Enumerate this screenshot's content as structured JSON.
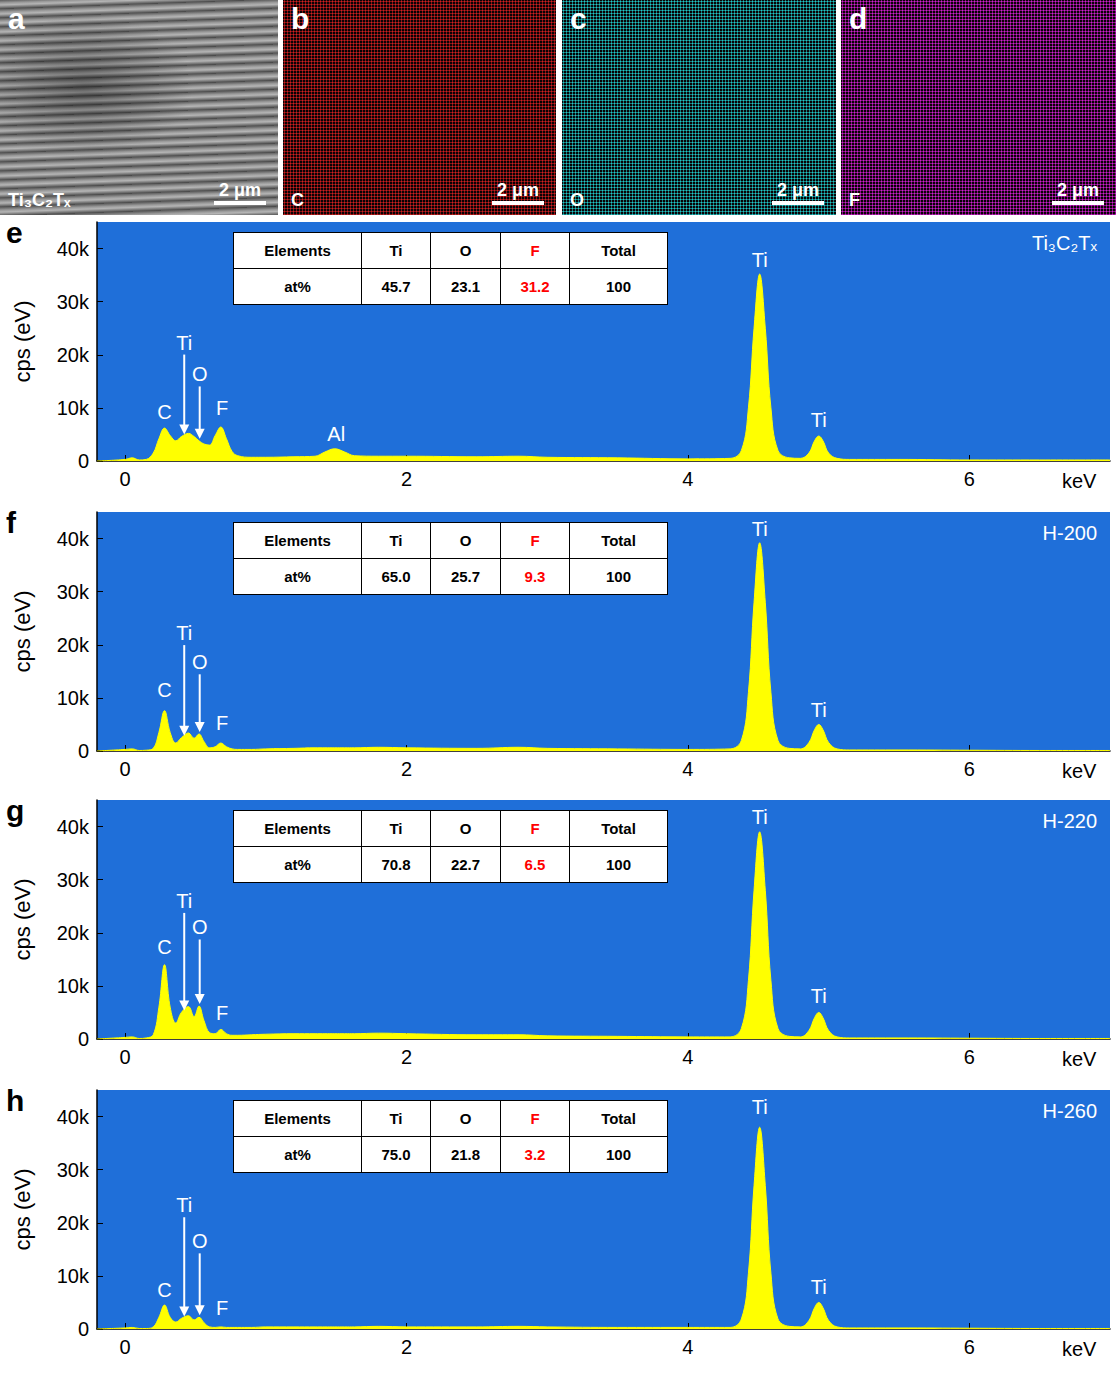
{
  "images": [
    {
      "letter": "a",
      "label": "Ti₃C₂Tₓ",
      "scale_bar": "2 μm",
      "color": "#9a9a9a"
    },
    {
      "letter": "b",
      "label": "C",
      "scale_bar": "2 μm",
      "color": "#d02020"
    },
    {
      "letter": "c",
      "label": "O",
      "scale_bar": "2 μm",
      "color": "#20c8c8"
    },
    {
      "letter": "d",
      "label": "F",
      "scale_bar": "2 μm",
      "color": "#d020d0"
    }
  ],
  "chart_data": [
    {
      "type": "area",
      "letter": "e",
      "title": "Ti₃C₂Tₓ",
      "xlabel": "keV",
      "ylabel": "cps (eV)",
      "color": "#ffff00",
      "grid": false,
      "xlim": [
        -0.2,
        7.0
      ],
      "xticks": [
        0,
        2,
        4,
        6
      ],
      "ylim": [
        0,
        45000
      ],
      "yticks": [
        0,
        {
          "value": 10000,
          "label": "10k"
        },
        {
          "value": 20000,
          "label": "20k"
        },
        {
          "value": 30000,
          "label": "30k"
        },
        {
          "value": 40000,
          "label": "40k"
        }
      ],
      "x": [
        -0.2,
        0,
        0.05,
        0.1,
        0.15,
        0.2,
        0.24,
        0.28,
        0.32,
        0.36,
        0.4,
        0.45,
        0.49,
        0.525,
        0.56,
        0.6,
        0.64,
        0.68,
        0.72,
        0.76,
        0.8,
        0.9,
        1.0,
        1.2,
        1.35,
        1.42,
        1.49,
        1.56,
        1.63,
        1.8,
        2.0,
        2.5,
        2.8,
        3.0,
        3.5,
        4.0,
        4.3,
        4.38,
        4.43,
        4.47,
        4.51,
        4.55,
        4.59,
        4.64,
        4.72,
        4.8,
        4.86,
        4.9,
        4.93,
        4.96,
        5.0,
        5.06,
        5.15,
        5.5,
        6.0,
        6.5,
        7.0
      ],
      "values": [
        0,
        300,
        600,
        200,
        300,
        1500,
        4200,
        6200,
        4800,
        3800,
        4600,
        5200,
        4600,
        3800,
        3200,
        3000,
        4800,
        6400,
        4200,
        1800,
        1000,
        700,
        700,
        800,
        900,
        1700,
        2300,
        1700,
        1000,
        900,
        900,
        800,
        900,
        700,
        600,
        400,
        500,
        2000,
        10000,
        25000,
        35200,
        25000,
        10000,
        2000,
        600,
        500,
        1500,
        3800,
        4700,
        3800,
        1500,
        500,
        300,
        300,
        200,
        200,
        200
      ],
      "annotations": [
        {
          "text": "C",
          "x": 0.28,
          "y": 9300
        },
        {
          "text": "Ti",
          "x": 0.42,
          "y": 22300,
          "marker": "arrow"
        },
        {
          "text": "O",
          "x": 0.53,
          "y": 16300,
          "marker": "arrow"
        },
        {
          "text": "F",
          "x": 0.69,
          "y": 10000
        },
        {
          "text": "Al",
          "x": 1.5,
          "y": 5100
        },
        {
          "text": "Ti",
          "x": 4.51,
          "y": 37900
        },
        {
          "text": "Ti",
          "x": 4.93,
          "y": 7800
        }
      ],
      "table": {
        "header": [
          "Elements",
          "Ti",
          "O",
          "F",
          "Total"
        ],
        "rows": [
          [
            "at%",
            "45.7",
            "23.1",
            "31.2",
            "100"
          ]
        ]
      }
    },
    {
      "type": "area",
      "letter": "f",
      "title": "H-200",
      "xlabel": "keV",
      "ylabel": "cps (eV)",
      "color": "#ffff00",
      "grid": false,
      "xlim": [
        -0.2,
        7.0
      ],
      "xticks": [
        0,
        2,
        4,
        6
      ],
      "ylim": [
        0,
        45000
      ],
      "yticks": [
        0,
        {
          "value": 10000,
          "label": "10k"
        },
        {
          "value": 20000,
          "label": "20k"
        },
        {
          "value": 30000,
          "label": "30k"
        },
        {
          "value": 40000,
          "label": "40k"
        }
      ],
      "x": [
        -0.2,
        0,
        0.05,
        0.1,
        0.15,
        0.2,
        0.24,
        0.28,
        0.32,
        0.36,
        0.4,
        0.45,
        0.49,
        0.525,
        0.56,
        0.6,
        0.64,
        0.68,
        0.72,
        0.76,
        0.8,
        0.9,
        1.0,
        1.2,
        1.35,
        1.42,
        1.49,
        1.56,
        1.63,
        1.8,
        2.0,
        2.5,
        2.8,
        3.0,
        3.5,
        4.0,
        4.3,
        4.38,
        4.43,
        4.47,
        4.51,
        4.55,
        4.59,
        4.64,
        4.72,
        4.8,
        4.86,
        4.9,
        4.93,
        4.96,
        5.0,
        5.06,
        5.15,
        5.5,
        6.0,
        6.5,
        7.0
      ],
      "values": [
        0,
        300,
        400,
        100,
        150,
        500,
        3500,
        7600,
        3500,
        1500,
        2500,
        3400,
        2400,
        3200,
        1800,
        600,
        800,
        1500,
        800,
        400,
        300,
        300,
        400,
        500,
        600,
        600,
        600,
        600,
        600,
        700,
        600,
        500,
        700,
        500,
        400,
        300,
        400,
        2000,
        11000,
        28000,
        39200,
        28000,
        11000,
        2000,
        500,
        400,
        1600,
        4000,
        5000,
        4000,
        1600,
        400,
        200,
        200,
        150,
        100,
        100
      ],
      "annotations": [
        {
          "text": "C",
          "x": 0.28,
          "y": 11400
        },
        {
          "text": "Ti",
          "x": 0.42,
          "y": 22200,
          "marker": "arrow"
        },
        {
          "text": "O",
          "x": 0.53,
          "y": 16700,
          "marker": "arrow"
        },
        {
          "text": "F",
          "x": 0.69,
          "y": 5300
        },
        {
          "text": "Ti",
          "x": 4.51,
          "y": 41800
        },
        {
          "text": "Ti",
          "x": 4.93,
          "y": 7800
        }
      ],
      "table": {
        "header": [
          "Elements",
          "Ti",
          "O",
          "F",
          "Total"
        ],
        "rows": [
          [
            "at%",
            "65.0",
            "25.7",
            "9.3",
            "100"
          ]
        ]
      }
    },
    {
      "type": "area",
      "letter": "g",
      "title": "H-220",
      "xlabel": "keV",
      "ylabel": "cps (eV)",
      "color": "#ffff00",
      "grid": false,
      "xlim": [
        -0.2,
        7.0
      ],
      "xticks": [
        0,
        2,
        4,
        6
      ],
      "ylim": [
        0,
        45000
      ],
      "yticks": [
        0,
        {
          "value": 10000,
          "label": "10k"
        },
        {
          "value": 20000,
          "label": "20k"
        },
        {
          "value": 30000,
          "label": "30k"
        },
        {
          "value": 40000,
          "label": "40k"
        }
      ],
      "x": [
        -0.2,
        0,
        0.05,
        0.1,
        0.15,
        0.2,
        0.24,
        0.28,
        0.32,
        0.36,
        0.4,
        0.45,
        0.49,
        0.525,
        0.56,
        0.6,
        0.64,
        0.68,
        0.72,
        0.76,
        0.8,
        0.9,
        1.0,
        1.2,
        1.35,
        1.42,
        1.49,
        1.56,
        1.63,
        1.8,
        2.0,
        2.5,
        2.8,
        3.0,
        3.5,
        4.0,
        4.3,
        4.38,
        4.43,
        4.47,
        4.51,
        4.55,
        4.59,
        4.64,
        4.72,
        4.8,
        4.86,
        4.9,
        4.93,
        4.96,
        5.0,
        5.06,
        5.15,
        5.5,
        6.0,
        6.5,
        7.0
      ],
      "values": [
        0,
        300,
        400,
        100,
        200,
        800,
        6000,
        14000,
        6000,
        3000,
        5000,
        6100,
        4200,
        6200,
        3500,
        1200,
        1000,
        1800,
        1000,
        700,
        700,
        800,
        900,
        1000,
        1000,
        1000,
        1000,
        1000,
        1000,
        1100,
        1000,
        800,
        800,
        600,
        500,
        400,
        400,
        2000,
        11000,
        28000,
        39000,
        28000,
        11000,
        2000,
        500,
        400,
        1600,
        4000,
        5000,
        4000,
        1600,
        400,
        200,
        200,
        150,
        100,
        100
      ],
      "annotations": [
        {
          "text": "C",
          "x": 0.28,
          "y": 17400
        },
        {
          "text": "Ti",
          "x": 0.42,
          "y": 26000,
          "marker": "arrow"
        },
        {
          "text": "O",
          "x": 0.53,
          "y": 21000,
          "marker": "arrow"
        },
        {
          "text": "F",
          "x": 0.69,
          "y": 4900
        },
        {
          "text": "Ti",
          "x": 4.51,
          "y": 41800
        },
        {
          "text": "Ti",
          "x": 4.93,
          "y": 8100
        }
      ],
      "table": {
        "header": [
          "Elements",
          "Ti",
          "O",
          "F",
          "Total"
        ],
        "rows": [
          [
            "at%",
            "70.8",
            "22.7",
            "6.5",
            "100"
          ]
        ]
      }
    },
    {
      "type": "area",
      "letter": "h",
      "title": "H-260",
      "xlabel": "keV",
      "ylabel": "cps (eV)",
      "color": "#ffff00",
      "grid": false,
      "xlim": [
        -0.2,
        7.0
      ],
      "xticks": [
        0,
        2,
        4,
        6
      ],
      "ylim": [
        0,
        45000
      ],
      "yticks": [
        0,
        {
          "value": 10000,
          "label": "10k"
        },
        {
          "value": 20000,
          "label": "20k"
        },
        {
          "value": 30000,
          "label": "30k"
        },
        {
          "value": 40000,
          "label": "40k"
        }
      ],
      "x": [
        -0.2,
        0,
        0.05,
        0.1,
        0.15,
        0.2,
        0.24,
        0.28,
        0.32,
        0.36,
        0.4,
        0.45,
        0.49,
        0.525,
        0.56,
        0.6,
        0.64,
        0.68,
        0.72,
        0.76,
        0.8,
        0.9,
        1.0,
        1.2,
        1.35,
        1.42,
        1.49,
        1.56,
        1.63,
        1.8,
        2.0,
        2.5,
        2.8,
        3.0,
        3.5,
        4.0,
        4.3,
        4.38,
        4.43,
        4.47,
        4.51,
        4.55,
        4.59,
        4.64,
        4.72,
        4.8,
        4.86,
        4.9,
        4.93,
        4.96,
        5.0,
        5.06,
        5.15,
        5.5,
        6.0,
        6.5,
        7.0
      ],
      "values": [
        0,
        200,
        300,
        100,
        100,
        400,
        2200,
        4500,
        2200,
        1300,
        2000,
        2500,
        1700,
        2200,
        1200,
        400,
        300,
        400,
        300,
        300,
        300,
        300,
        400,
        400,
        400,
        400,
        400,
        400,
        400,
        500,
        400,
        400,
        500,
        400,
        300,
        300,
        300,
        1900,
        10500,
        27000,
        38000,
        27000,
        10500,
        1900,
        500,
        400,
        1600,
        4000,
        5000,
        4000,
        1600,
        400,
        200,
        200,
        150,
        100,
        100
      ],
      "annotations": [
        {
          "text": "C",
          "x": 0.28,
          "y": 7400
        },
        {
          "text": "Ti",
          "x": 0.42,
          "y": 23300,
          "marker": "arrow"
        },
        {
          "text": "O",
          "x": 0.53,
          "y": 16500,
          "marker": "arrow"
        },
        {
          "text": "F",
          "x": 0.69,
          "y": 4000
        },
        {
          "text": "Ti",
          "x": 4.51,
          "y": 41800
        },
        {
          "text": "Ti",
          "x": 4.93,
          "y": 8000
        }
      ],
      "table": {
        "header": [
          "Elements",
          "Ti",
          "O",
          "F",
          "Total"
        ],
        "rows": [
          [
            "at%",
            "75.0",
            "21.8",
            "3.2",
            "100"
          ]
        ]
      }
    }
  ]
}
